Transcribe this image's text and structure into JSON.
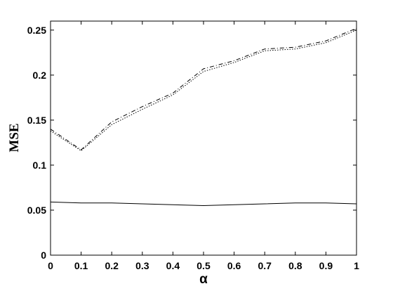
{
  "chart_data": {
    "type": "line",
    "xlabel": "α",
    "ylabel": "MSE",
    "x": [
      0,
      0.1,
      0.2,
      0.3,
      0.4,
      0.5,
      0.6,
      0.7,
      0.8,
      0.9,
      1
    ],
    "series": [
      {
        "color": "#000000",
        "dash": "solid",
        "values": [
          0.059,
          0.058,
          0.058,
          0.057,
          0.056,
          0.055,
          0.056,
          0.057,
          0.058,
          0.058,
          0.057
        ]
      },
      {
        "color": "#000000",
        "dash": "dashdot",
        "values": [
          0.14,
          0.117,
          0.148,
          0.165,
          0.18,
          0.207,
          0.216,
          0.229,
          0.231,
          0.238,
          0.252
        ]
      },
      {
        "color": "#000000",
        "dash": "dotted",
        "values": [
          0.138,
          0.116,
          0.145,
          0.162,
          0.178,
          0.204,
          0.214,
          0.227,
          0.229,
          0.236,
          0.25
        ]
      }
    ],
    "xlim": [
      0,
      1
    ],
    "xticks": [
      0,
      0.1,
      0.2,
      0.3,
      0.4,
      0.5,
      0.6,
      0.7,
      0.8,
      0.9,
      1
    ],
    "ylim": [
      0,
      0.26
    ],
    "yticks": [
      0,
      0.05,
      0.1,
      0.15,
      0.2,
      0.25
    ],
    "grid": false
  }
}
